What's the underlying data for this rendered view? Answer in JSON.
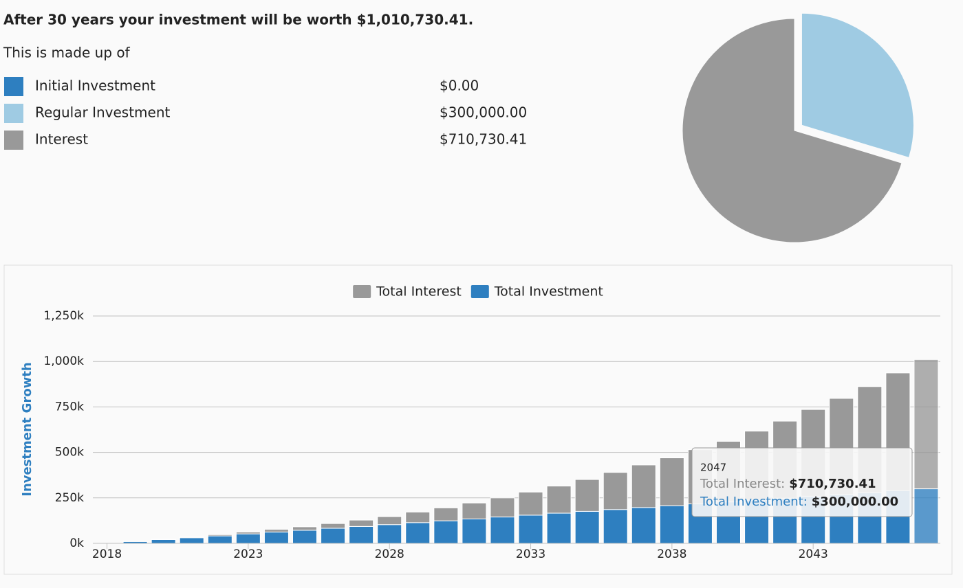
{
  "summary": {
    "headline": "After 30 years your investment will be worth $1,010,730.41.",
    "intro": "This is made up of"
  },
  "chart_data": [
    {
      "type": "pie",
      "categories": [
        "Initial Investment",
        "Regular Investment",
        "Interest"
      ],
      "values": [
        0,
        300000,
        710730.41
      ],
      "value_labels": [
        "$0.00",
        "$300,000.00",
        "$710,730.41"
      ],
      "colors": [
        "#2e7fc0",
        "#9fcbe3",
        "#999999"
      ],
      "exploded": [
        false,
        true,
        false
      ]
    },
    {
      "type": "stacked-bar",
      "legend": "top",
      "y_label": "Investment Growth",
      "x": [
        2018,
        2019,
        2020,
        2021,
        2022,
        2023,
        2024,
        2025,
        2026,
        2027,
        2028,
        2029,
        2030,
        2031,
        2032,
        2033,
        2034,
        2035,
        2036,
        2037,
        2038,
        2039,
        2040,
        2041,
        2042,
        2043,
        2044,
        2045,
        2046,
        2047
      ],
      "xlim": [
        2017.5,
        2047.5
      ],
      "xticks": [
        2018,
        2023,
        2028,
        2033,
        2038,
        2043
      ],
      "ylim": [
        0,
        1250000
      ],
      "yticks": [
        {
          "value": 0,
          "label": "0k"
        },
        {
          "value": 250000,
          "label": "250k"
        },
        {
          "value": 500000,
          "label": "500k"
        },
        {
          "value": 750000,
          "label": "750k"
        },
        {
          "value": 1000000,
          "label": "1,000k"
        },
        {
          "value": 1250000,
          "label": "1,250k"
        }
      ],
      "grid": true,
      "series": [
        {
          "name": "Total Interest",
          "color": "#999999",
          "values": [
            0,
            1000,
            2000,
            4000,
            7000,
            10000,
            15000,
            19000,
            26000,
            35000,
            44000,
            58000,
            71000,
            88000,
            105000,
            127000,
            149000,
            175000,
            204000,
            234000,
            263000,
            298000,
            333000,
            379000,
            424000,
            477000,
            528000,
            583000,
            647000,
            710730.41
          ]
        },
        {
          "name": "Total Investment",
          "color": "#2e7fc0",
          "values": [
            0,
            10000,
            21000,
            31000,
            41000,
            52000,
            62000,
            72000,
            83000,
            93000,
            103000,
            114000,
            124000,
            134000,
            145000,
            155000,
            166000,
            176000,
            186000,
            197000,
            207000,
            217000,
            228000,
            238000,
            248000,
            259000,
            269000,
            279000,
            290000,
            300000
          ]
        }
      ],
      "tooltip": {
        "title": "2047",
        "rows": [
          {
            "label": "Total Interest:",
            "value": "$710,730.41"
          },
          {
            "label": "Total Investment:",
            "value": "$300,000.00"
          }
        ]
      }
    }
  ]
}
